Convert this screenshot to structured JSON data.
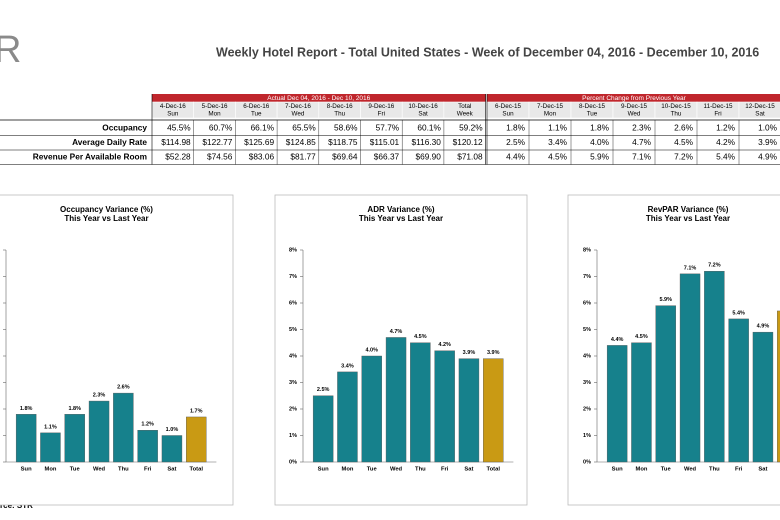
{
  "header": {
    "logo": "R",
    "title": "Weekly Hotel Report - Total United States - Week of December 04, 2016 - December 10, 2016"
  },
  "table": {
    "groups": [
      "Actual Dec 04, 2016 - Dec 10, 2016",
      "Percent Change from Previous Year"
    ],
    "actual_columns": [
      {
        "date": "4-Dec-16",
        "day": "Sun"
      },
      {
        "date": "5-Dec-16",
        "day": "Mon"
      },
      {
        "date": "6-Dec-16",
        "day": "Tue"
      },
      {
        "date": "7-Dec-16",
        "day": "Wed"
      },
      {
        "date": "8-Dec-16",
        "day": "Thu"
      },
      {
        "date": "9-Dec-16",
        "day": "Fri"
      },
      {
        "date": "10-Dec-16",
        "day": "Sat"
      },
      {
        "date": "Total",
        "day": "Week"
      }
    ],
    "change_columns": [
      {
        "date": "6-Dec-15",
        "day": "Sun"
      },
      {
        "date": "7-Dec-15",
        "day": "Mon"
      },
      {
        "date": "8-Dec-15",
        "day": "Tue"
      },
      {
        "date": "9-Dec-15",
        "day": "Wed"
      },
      {
        "date": "10-Dec-15",
        "day": "Thu"
      },
      {
        "date": "11-Dec-15",
        "day": "Fri"
      },
      {
        "date": "12-Dec-15",
        "day": "Sat"
      }
    ],
    "rows": [
      {
        "label": "Occupancy",
        "actual": [
          "45.5%",
          "60.7%",
          "66.1%",
          "65.5%",
          "58.6%",
          "57.7%",
          "60.1%",
          "59.2%"
        ],
        "change": [
          "1.8%",
          "1.1%",
          "1.8%",
          "2.3%",
          "2.6%",
          "1.2%",
          "1.0%"
        ]
      },
      {
        "label": "Average Daily Rate",
        "actual": [
          "$114.98",
          "$122.77",
          "$125.69",
          "$124.85",
          "$118.75",
          "$115.01",
          "$116.30",
          "$120.12"
        ],
        "change": [
          "2.5%",
          "3.4%",
          "4.0%",
          "4.7%",
          "4.5%",
          "4.2%",
          "3.9%"
        ]
      },
      {
        "label": "Revenue Per Available Room",
        "actual": [
          "$52.28",
          "$74.56",
          "$83.06",
          "$81.77",
          "$69.64",
          "$66.37",
          "$69.90",
          "$71.08"
        ],
        "change": [
          "4.4%",
          "4.5%",
          "5.9%",
          "7.1%",
          "7.2%",
          "5.4%",
          "4.9%"
        ]
      }
    ]
  },
  "chart_data": [
    {
      "type": "bar",
      "title": "Occupancy Variance (%)",
      "subtitle": "This Year vs Last Year",
      "categories": [
        "Sun",
        "Mon",
        "Tue",
        "Wed",
        "Thu",
        "Fri",
        "Sat",
        "Total"
      ],
      "values": [
        1.8,
        1.1,
        1.8,
        2.3,
        2.6,
        1.2,
        1.0,
        1.7
      ],
      "value_labels": [
        "1.8%",
        "1.1%",
        "1.8%",
        "2.3%",
        "2.6%",
        "1.2%",
        "1.0%",
        "1.7%"
      ],
      "colors": [
        "#16818c",
        "#16818c",
        "#16818c",
        "#16818c",
        "#16818c",
        "#16818c",
        "#16818c",
        "#c99a14"
      ],
      "ylim": [
        0,
        8
      ],
      "yticks": [
        0,
        1,
        2,
        3,
        4,
        5,
        6,
        7,
        8
      ]
    },
    {
      "type": "bar",
      "title": "ADR Variance (%)",
      "subtitle": "This Year vs Last Year",
      "categories": [
        "Sun",
        "Mon",
        "Tue",
        "Wed",
        "Thu",
        "Fri",
        "Sat",
        "Total"
      ],
      "values": [
        2.5,
        3.4,
        4.0,
        4.7,
        4.5,
        4.2,
        3.9,
        3.9
      ],
      "value_labels": [
        "2.5%",
        "3.4%",
        "4.0%",
        "4.7%",
        "4.5%",
        "4.2%",
        "3.9%",
        "3.9%"
      ],
      "colors": [
        "#16818c",
        "#16818c",
        "#16818c",
        "#16818c",
        "#16818c",
        "#16818c",
        "#16818c",
        "#c99a14"
      ],
      "ylim": [
        0,
        8
      ],
      "yticks": [
        {
          "value": 0,
          "label": "0%"
        },
        {
          "value": 1,
          "label": "1%"
        },
        {
          "value": 2,
          "label": "2%"
        },
        {
          "value": 3,
          "label": "3%"
        },
        {
          "value": 4,
          "label": "4%"
        },
        {
          "value": 5,
          "label": "5%"
        },
        {
          "value": 6,
          "label": "6%"
        },
        {
          "value": 7,
          "label": "7%"
        },
        {
          "value": 8,
          "label": "8%"
        }
      ]
    },
    {
      "type": "bar",
      "title": "RevPAR Variance (%)",
      "subtitle": "This Year vs Last Year",
      "categories": [
        "Sun",
        "Mon",
        "Tue",
        "Wed",
        "Thu",
        "Fri",
        "Sat",
        null
      ],
      "values": [
        4.4,
        4.5,
        5.9,
        7.1,
        7.2,
        5.4,
        4.9,
        5.7
      ],
      "value_labels": [
        "4.4%",
        "4.5%",
        "5.9%",
        "7.1%",
        "7.2%",
        "5.4%",
        "4.9%",
        null
      ],
      "colors": [
        "#16818c",
        "#16818c",
        "#16818c",
        "#16818c",
        "#16818c",
        "#16818c",
        "#16818c",
        "#c99a14"
      ],
      "ylim": [
        0,
        8
      ],
      "yticks": [
        {
          "value": 0,
          "label": "0%"
        },
        {
          "value": 1,
          "label": "1%"
        },
        {
          "value": 2,
          "label": "2%"
        },
        {
          "value": 3,
          "label": "3%"
        },
        {
          "value": 4,
          "label": "4%"
        },
        {
          "value": 5,
          "label": "5%"
        },
        {
          "value": 6,
          "label": "6%"
        },
        {
          "value": 7,
          "label": "7%"
        },
        {
          "value": 8,
          "label": "8%"
        }
      ]
    }
  ],
  "footer": "rce: STR"
}
